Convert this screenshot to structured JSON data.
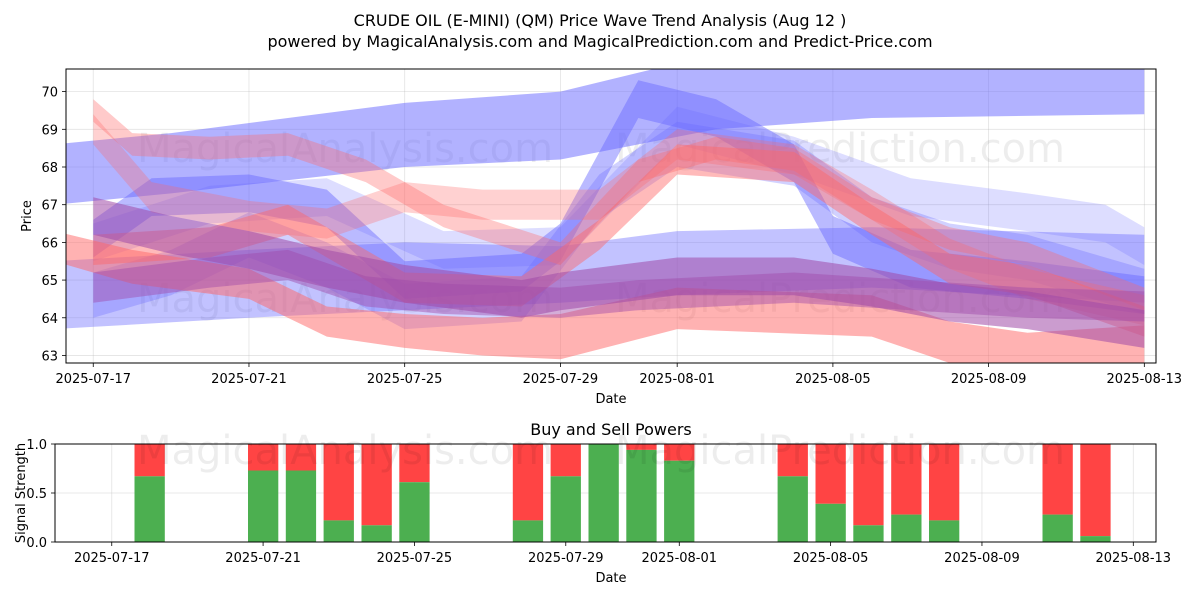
{
  "title_line1": "CRUDE OIL (E-MINI) (QM) Price Wave Trend Analysis (Aug 12 )",
  "title_line2": "powered by MagicalAnalysis.com and MagicalPrediction.com and Predict-Price.com",
  "watermarks": {
    "left": "MagicalAnalysis.com",
    "right": "MagicalPrediction.com"
  },
  "colors": {
    "blue_band": "#6666ff",
    "red_band": "#ff6666",
    "buy_green": "#4caf50",
    "sell_red": "#ff4444"
  },
  "chart_data": [
    {
      "type": "area",
      "title": "",
      "xlabel": "Date",
      "ylabel": "Price",
      "ylim": [
        62.8,
        70.6
      ],
      "xlim_days": [
        -0.7,
        27.3
      ],
      "x_origin": "2025-07-17",
      "x_ticks": [
        {
          "label": "2025-07-17",
          "day": 0
        },
        {
          "label": "2025-07-21",
          "day": 4
        },
        {
          "label": "2025-07-25",
          "day": 8
        },
        {
          "label": "2025-07-29",
          "day": 12
        },
        {
          "label": "2025-08-01",
          "day": 15
        },
        {
          "label": "2025-08-05",
          "day": 19
        },
        {
          "label": "2025-08-09",
          "day": 23
        },
        {
          "label": "2025-08-13",
          "day": 27
        }
      ],
      "y_ticks": [
        {
          "label": "63",
          "value": 63
        },
        {
          "label": "64",
          "value": 64
        },
        {
          "label": "65",
          "value": 65
        },
        {
          "label": "66",
          "value": 66
        },
        {
          "label": "67",
          "value": 67
        },
        {
          "label": "68",
          "value": 68
        },
        {
          "label": "69",
          "value": 69
        },
        {
          "label": "70",
          "value": 70
        }
      ],
      "grid": true,
      "series": [
        {
          "name": "blue-upper-wide",
          "color": "blue",
          "opacity": 0.5,
          "points": [
            [
              -1,
              68.6,
              67.0
            ],
            [
              2,
              68.9,
              67.3
            ],
            [
              8,
              69.7,
              68.0
            ],
            [
              12,
              70.0,
              68.2
            ],
            [
              16,
              71.0,
              69.0
            ],
            [
              20,
              71.2,
              69.3
            ],
            [
              27,
              70.6,
              69.4
            ]
          ]
        },
        {
          "name": "blue-lower-wide",
          "color": "blue",
          "opacity": 0.4,
          "points": [
            [
              -1,
              65.5,
              63.7
            ],
            [
              4,
              65.8,
              64.0
            ],
            [
              8,
              66.0,
              64.2
            ],
            [
              12,
              65.9,
              64.4
            ],
            [
              15,
              66.3,
              64.6
            ],
            [
              20,
              66.4,
              64.8
            ],
            [
              27,
              66.2,
              64.4
            ]
          ]
        },
        {
          "name": "blue-wave-a",
          "color": "blue",
          "opacity": 0.45,
          "points": [
            [
              0,
              66.6,
              65.6
            ],
            [
              1.5,
              67.7,
              66.7
            ],
            [
              4,
              67.8,
              66.8
            ],
            [
              6,
              67.4,
              66.4
            ],
            [
              8,
              65.5,
              64.5
            ],
            [
              11,
              65.7,
              64.7
            ],
            [
              12,
              66.5,
              65.5
            ],
            [
              14,
              70.3,
              69.3
            ],
            [
              16,
              69.8,
              68.8
            ],
            [
              18,
              68.6,
              67.6
            ],
            [
              19,
              66.7,
              65.7
            ],
            [
              21,
              65.8,
              64.8
            ],
            [
              24,
              65.5,
              64.5
            ],
            [
              27,
              65.1,
              64.1
            ]
          ]
        },
        {
          "name": "blue-wave-b",
          "color": "blue",
          "opacity": 0.3,
          "points": [
            [
              0,
              65.2,
              64.0
            ],
            [
              2,
              65.8,
              64.6
            ],
            [
              4,
              66.8,
              65.6
            ],
            [
              6,
              66.0,
              64.8
            ],
            [
              8,
              64.9,
              63.7
            ],
            [
              11,
              65.1,
              63.9
            ],
            [
              13,
              67.8,
              66.6
            ],
            [
              15,
              69.2,
              68.0
            ],
            [
              18,
              68.7,
              67.5
            ],
            [
              20,
              67.2,
              66.0
            ],
            [
              22,
              66.5,
              65.3
            ],
            [
              24,
              66.2,
              65.0
            ],
            [
              27,
              65.3,
              64.1
            ]
          ]
        },
        {
          "name": "blue-wave-c",
          "color": "blue",
          "opacity": 0.22,
          "points": [
            [
              0,
              66.5,
              65.5
            ],
            [
              3,
              67.5,
              66.5
            ],
            [
              6,
              67.7,
              66.7
            ],
            [
              9,
              66.3,
              65.3
            ],
            [
              12,
              66.4,
              65.4
            ],
            [
              15,
              69.6,
              68.6
            ],
            [
              18,
              68.8,
              67.8
            ],
            [
              21,
              67.7,
              66.7
            ],
            [
              24,
              67.3,
              66.3
            ],
            [
              26,
              67.0,
              66.0
            ],
            [
              27,
              66.4,
              65.4
            ]
          ]
        },
        {
          "name": "red-upper-wave",
          "color": "red",
          "opacity": 0.35,
          "points": [
            [
              0,
              69.8,
              69.2
            ],
            [
              1,
              68.9,
              68.3
            ],
            [
              3,
              68.8,
              68.2
            ],
            [
              5,
              68.9,
              68.3
            ],
            [
              7,
              68.2,
              67.6
            ],
            [
              9,
              67.0,
              66.4
            ],
            [
              12,
              66.0,
              65.4
            ],
            [
              14,
              68.2,
              67.6
            ],
            [
              16,
              68.8,
              68.2
            ],
            [
              18,
              68.5,
              67.9
            ],
            [
              20,
              67.2,
              66.6
            ],
            [
              22,
              66.4,
              65.8
            ],
            [
              24,
              66.0,
              65.4
            ],
            [
              27,
              64.8,
              64.2
            ]
          ]
        },
        {
          "name": "red-mid-wave",
          "color": "red",
          "opacity": 0.3,
          "points": [
            [
              0,
              69.4,
              68.6
            ],
            [
              1.5,
              67.6,
              66.8
            ],
            [
              4,
              67.1,
              66.3
            ],
            [
              6,
              66.9,
              66.1
            ],
            [
              8,
              67.6,
              66.8
            ],
            [
              10,
              67.4,
              66.6
            ],
            [
              13,
              67.4,
              66.6
            ],
            [
              15,
              69.0,
              68.2
            ],
            [
              18,
              68.6,
              67.8
            ],
            [
              20,
              67.4,
              66.6
            ],
            [
              22,
              66.1,
              65.3
            ],
            [
              24,
              65.3,
              64.5
            ],
            [
              27,
              64.6,
              63.8
            ]
          ]
        },
        {
          "name": "red-lower-wide",
          "color": "red",
          "opacity": 0.5,
          "points": [
            [
              -1,
              66.3,
              65.5
            ],
            [
              1,
              65.8,
              64.9
            ],
            [
              4,
              65.3,
              64.5
            ],
            [
              6,
              64.3,
              63.5
            ],
            [
              8,
              64.1,
              63.2
            ],
            [
              10,
              64.0,
              63.0
            ],
            [
              12,
              64.1,
              62.9
            ],
            [
              15,
              64.8,
              63.7
            ],
            [
              20,
              64.6,
              63.5
            ],
            [
              22,
              63.9,
              62.8
            ],
            [
              24,
              63.6,
              62.5
            ],
            [
              27,
              63.8,
              62.6
            ]
          ]
        },
        {
          "name": "red-wave-a",
          "color": "red",
          "opacity": 0.45,
          "points": [
            [
              0,
              66.2,
              65.4
            ],
            [
              3,
              66.4,
              65.6
            ],
            [
              5,
              67.0,
              66.2
            ],
            [
              8,
              65.2,
              64.4
            ],
            [
              11,
              65.1,
              64.3
            ],
            [
              13,
              66.6,
              65.8
            ],
            [
              15,
              68.6,
              67.8
            ],
            [
              18,
              68.4,
              67.6
            ],
            [
              20,
              67.0,
              66.2
            ],
            [
              22,
              65.7,
              64.9
            ],
            [
              24,
              65.4,
              64.6
            ],
            [
              27,
              64.3,
              63.5
            ]
          ]
        },
        {
          "name": "purple-upper-wave",
          "color": "purple",
          "opacity": 0.55,
          "points": [
            [
              0,
              67.2,
              66.2
            ],
            [
              2,
              66.7,
              65.7
            ],
            [
              4,
              66.3,
              65.3
            ],
            [
              6,
              65.8,
              64.8
            ],
            [
              8,
              65.4,
              64.4
            ],
            [
              11,
              65.0,
              64.0
            ],
            [
              12,
              65.2,
              64.2
            ],
            [
              15,
              65.6,
              64.6
            ],
            [
              18,
              65.6,
              64.6
            ],
            [
              20,
              65.3,
              64.3
            ],
            [
              22,
              64.9,
              63.9
            ],
            [
              24,
              64.7,
              63.7
            ],
            [
              27,
              64.2,
              63.2
            ]
          ]
        },
        {
          "name": "purple-lower-wave",
          "color": "purple",
          "opacity": 0.45,
          "points": [
            [
              0,
              65.2,
              64.4
            ],
            [
              3,
              65.6,
              64.8
            ],
            [
              5,
              65.8,
              65.0
            ],
            [
              7,
              65.1,
              64.3
            ],
            [
              9,
              64.9,
              64.1
            ],
            [
              12,
              64.8,
              64.0
            ],
            [
              14,
              65.0,
              64.2
            ],
            [
              18,
              65.2,
              64.4
            ],
            [
              21,
              65.0,
              64.2
            ],
            [
              24,
              64.8,
              64.0
            ],
            [
              27,
              64.7,
              63.9
            ]
          ]
        }
      ]
    },
    {
      "type": "bar",
      "title": "Buy and Sell Powers",
      "xlabel": "Date",
      "ylabel": "Signal Strength",
      "ylim": [
        0,
        1
      ],
      "xlim_days": [
        -1.5,
        27.6
      ],
      "x_origin": "2025-07-17",
      "stacked": true,
      "series_names": [
        "buy",
        "sell"
      ],
      "x_ticks": [
        {
          "label": "2025-07-17",
          "day": 0
        },
        {
          "label": "2025-07-21",
          "day": 4
        },
        {
          "label": "2025-07-25",
          "day": 8
        },
        {
          "label": "2025-07-29",
          "day": 12
        },
        {
          "label": "2025-08-01",
          "day": 15
        },
        {
          "label": "2025-08-05",
          "day": 19
        },
        {
          "label": "2025-08-09",
          "day": 23
        },
        {
          "label": "2025-08-13",
          "day": 27
        }
      ],
      "y_ticks": [
        {
          "label": "0.0",
          "value": 0
        },
        {
          "label": "0.5",
          "value": 0.5
        },
        {
          "label": "1.0",
          "value": 1
        }
      ],
      "grid": true,
      "bars": [
        {
          "date": "2025-07-18",
          "day": 1,
          "buy": 0.67
        },
        {
          "date": "2025-07-21",
          "day": 4,
          "buy": 0.73
        },
        {
          "date": "2025-07-22",
          "day": 5,
          "buy": 0.73
        },
        {
          "date": "2025-07-23",
          "day": 6,
          "buy": 0.22
        },
        {
          "date": "2025-07-24",
          "day": 7,
          "buy": 0.17
        },
        {
          "date": "2025-07-25",
          "day": 8,
          "buy": 0.61
        },
        {
          "date": "2025-07-28",
          "day": 11,
          "buy": 0.22
        },
        {
          "date": "2025-07-29",
          "day": 12,
          "buy": 0.67
        },
        {
          "date": "2025-07-30",
          "day": 13,
          "buy": 1.0
        },
        {
          "date": "2025-07-31",
          "day": 14,
          "buy": 0.94
        },
        {
          "date": "2025-08-01",
          "day": 15,
          "buy": 0.83
        },
        {
          "date": "2025-08-04",
          "day": 18,
          "buy": 0.67
        },
        {
          "date": "2025-08-05",
          "day": 19,
          "buy": 0.39
        },
        {
          "date": "2025-08-06",
          "day": 20,
          "buy": 0.17
        },
        {
          "date": "2025-08-07",
          "day": 21,
          "buy": 0.28
        },
        {
          "date": "2025-08-08",
          "day": 22,
          "buy": 0.22
        },
        {
          "date": "2025-08-11",
          "day": 25,
          "buy": 0.28
        },
        {
          "date": "2025-08-12",
          "day": 26,
          "buy": 0.06
        }
      ]
    }
  ]
}
